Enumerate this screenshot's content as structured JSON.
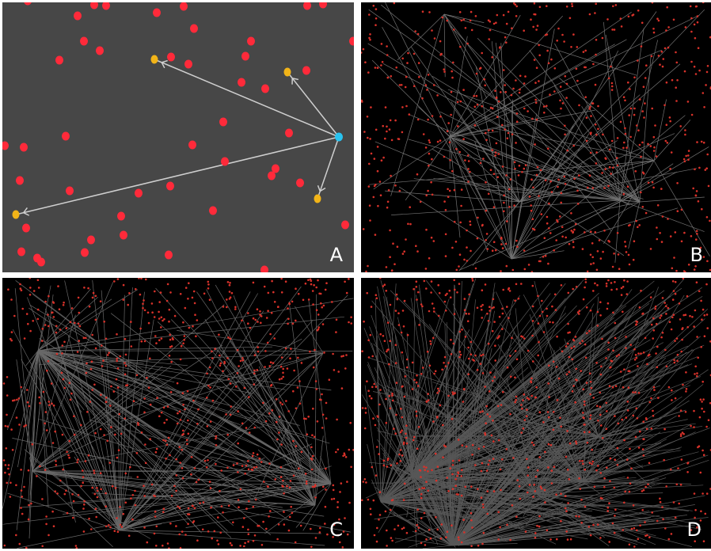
{
  "panels": [
    {
      "id": "A",
      "label": "A"
    },
    {
      "id": "B",
      "label": "B"
    },
    {
      "id": "C",
      "label": "C"
    },
    {
      "id": "D",
      "label": "D"
    }
  ],
  "colors": {
    "panel_a_background": "#474747",
    "dark_background": "#000000",
    "node_red": "#ff2a3a",
    "node_red_small": "#d8322a",
    "target_yellow": "#f2b418",
    "source_cyan": "#29c3f0",
    "edge_light": "#cfcfcf",
    "edge_dim": "#9a9a9a",
    "label_white": "#ffffff"
  }
}
